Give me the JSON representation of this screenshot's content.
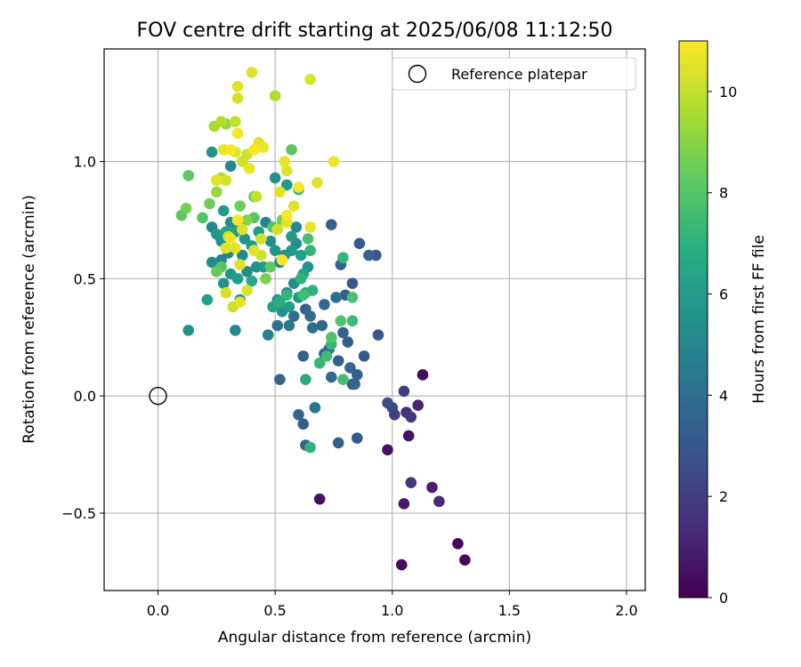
{
  "chart_data": {
    "type": "scatter",
    "title": "FOV centre drift starting at 2025/06/08 11:12:50",
    "xlabel": "Angular distance from reference (arcmin)",
    "ylabel": "Rotation from reference (arcmin)",
    "xlim": [
      -0.23,
      2.08
    ],
    "ylim": [
      -0.83,
      1.48
    ],
    "xticks": [
      0.0,
      0.5,
      1.0,
      1.5,
      2.0
    ],
    "xtick_labels": [
      "0.0",
      "0.5",
      "1.0",
      "1.5",
      "2.0"
    ],
    "yticks": [
      -0.5,
      0.0,
      0.5,
      1.0
    ],
    "ytick_labels": [
      "−0.5",
      "0.0",
      "0.5",
      "1.0"
    ],
    "grid": true,
    "legend": {
      "label": "Reference platepar",
      "placement": "top-right"
    },
    "reference_point": {
      "x": 0.0,
      "y": 0.0
    },
    "colorbar": {
      "label": "Hours from first FF file",
      "colormap": "viridis",
      "range": [
        0,
        11
      ],
      "ticks": [
        0,
        2,
        4,
        6,
        8,
        10
      ],
      "tick_labels": [
        "0",
        "2",
        "4",
        "6",
        "8",
        "10"
      ]
    },
    "points": [
      {
        "x": 1.13,
        "y": 0.09,
        "c": 0.3
      },
      {
        "x": 1.28,
        "y": -0.63,
        "c": 0.2
      },
      {
        "x": 1.31,
        "y": -0.7,
        "c": 0.2
      },
      {
        "x": 1.04,
        "y": -0.72,
        "c": 0.3
      },
      {
        "x": 1.05,
        "y": -0.46,
        "c": 0.8
      },
      {
        "x": 1.2,
        "y": -0.45,
        "c": 1.3
      },
      {
        "x": 1.17,
        "y": -0.39,
        "c": 0.9
      },
      {
        "x": 1.08,
        "y": -0.37,
        "c": 1.8
      },
      {
        "x": 0.98,
        "y": -0.23,
        "c": 0.5
      },
      {
        "x": 1.07,
        "y": -0.17,
        "c": 0.6
      },
      {
        "x": 0.69,
        "y": -0.44,
        "c": 0.5
      },
      {
        "x": 1.11,
        "y": -0.04,
        "c": 1.1
      },
      {
        "x": 1.08,
        "y": -0.09,
        "c": 1.8
      },
      {
        "x": 1.06,
        "y": -0.07,
        "c": 1.5
      },
      {
        "x": 1.01,
        "y": -0.08,
        "c": 2.0
      },
      {
        "x": 1.0,
        "y": -0.05,
        "c": 2.3
      },
      {
        "x": 0.98,
        "y": -0.03,
        "c": 2.6
      },
      {
        "x": 1.05,
        "y": 0.02,
        "c": 2.0
      },
      {
        "x": 0.85,
        "y": -0.18,
        "c": 3.1
      },
      {
        "x": 0.77,
        "y": -0.2,
        "c": 3.3
      },
      {
        "x": 0.63,
        "y": -0.21,
        "c": 3.5
      },
      {
        "x": 0.62,
        "y": -0.12,
        "c": 3.2
      },
      {
        "x": 0.6,
        "y": -0.08,
        "c": 3.6
      },
      {
        "x": 0.67,
        "y": -0.05,
        "c": 4.3
      },
      {
        "x": 0.52,
        "y": 0.07,
        "c": 3.6
      },
      {
        "x": 0.62,
        "y": 0.17,
        "c": 3.3
      },
      {
        "x": 0.71,
        "y": 0.18,
        "c": 3.5
      },
      {
        "x": 0.74,
        "y": 0.08,
        "c": 3.8
      },
      {
        "x": 0.77,
        "y": 0.15,
        "c": 3.2
      },
      {
        "x": 0.82,
        "y": 0.12,
        "c": 3.5
      },
      {
        "x": 0.83,
        "y": 0.05,
        "c": 3.0
      },
      {
        "x": 0.84,
        "y": 0.05,
        "c": 3.6
      },
      {
        "x": 0.85,
        "y": 0.09,
        "c": 3.3
      },
      {
        "x": 0.88,
        "y": 0.17,
        "c": 3.1
      },
      {
        "x": 0.81,
        "y": 0.23,
        "c": 3.2
      },
      {
        "x": 0.79,
        "y": 0.27,
        "c": 3.4
      },
      {
        "x": 0.94,
        "y": 0.26,
        "c": 3.0
      },
      {
        "x": 0.73,
        "y": 0.2,
        "c": 3.5
      },
      {
        "x": 0.7,
        "y": 0.3,
        "c": 3.7
      },
      {
        "x": 0.66,
        "y": 0.29,
        "c": 4.0
      },
      {
        "x": 0.63,
        "y": 0.37,
        "c": 3.5
      },
      {
        "x": 0.65,
        "y": 0.34,
        "c": 3.8
      },
      {
        "x": 0.71,
        "y": 0.39,
        "c": 3.6
      },
      {
        "x": 0.76,
        "y": 0.42,
        "c": 4.0
      },
      {
        "x": 0.8,
        "y": 0.43,
        "c": 3.2
      },
      {
        "x": 0.83,
        "y": 0.48,
        "c": 3.0
      },
      {
        "x": 0.78,
        "y": 0.56,
        "c": 3.4
      },
      {
        "x": 0.86,
        "y": 0.65,
        "c": 3.1
      },
      {
        "x": 0.9,
        "y": 0.6,
        "c": 3.4
      },
      {
        "x": 0.93,
        "y": 0.6,
        "c": 3.0
      },
      {
        "x": 0.74,
        "y": 0.73,
        "c": 3.3
      },
      {
        "x": 0.58,
        "y": 0.34,
        "c": 4.1
      },
      {
        "x": 0.56,
        "y": 0.3,
        "c": 4.5
      },
      {
        "x": 0.51,
        "y": 0.3,
        "c": 4.2
      },
      {
        "x": 0.47,
        "y": 0.26,
        "c": 4.9
      },
      {
        "x": 0.33,
        "y": 0.28,
        "c": 5.1
      },
      {
        "x": 0.13,
        "y": 0.28,
        "c": 5.6
      },
      {
        "x": 0.21,
        "y": 0.41,
        "c": 6.2
      },
      {
        "x": 0.35,
        "y": 0.41,
        "c": 5.8
      },
      {
        "x": 0.28,
        "y": 0.48,
        "c": 5.5
      },
      {
        "x": 0.31,
        "y": 0.52,
        "c": 5.9
      },
      {
        "x": 0.34,
        "y": 0.5,
        "c": 6.1
      },
      {
        "x": 0.38,
        "y": 0.53,
        "c": 5.3
      },
      {
        "x": 0.42,
        "y": 0.55,
        "c": 5.6
      },
      {
        "x": 0.45,
        "y": 0.55,
        "c": 6.1
      },
      {
        "x": 0.4,
        "y": 0.49,
        "c": 6.5
      },
      {
        "x": 0.36,
        "y": 0.6,
        "c": 5.2
      },
      {
        "x": 0.3,
        "y": 0.61,
        "c": 4.8
      },
      {
        "x": 0.27,
        "y": 0.58,
        "c": 5.0
      },
      {
        "x": 0.23,
        "y": 0.57,
        "c": 5.4
      },
      {
        "x": 0.27,
        "y": 0.66,
        "c": 5.7
      },
      {
        "x": 0.29,
        "y": 0.7,
        "c": 6.3
      },
      {
        "x": 0.31,
        "y": 0.74,
        "c": 5.5
      },
      {
        "x": 0.28,
        "y": 0.79,
        "c": 5.9
      },
      {
        "x": 0.23,
        "y": 0.72,
        "c": 5.2
      },
      {
        "x": 0.25,
        "y": 0.69,
        "c": 5.8
      },
      {
        "x": 0.33,
        "y": 0.7,
        "c": 6.1
      },
      {
        "x": 0.35,
        "y": 0.73,
        "c": 6.4
      },
      {
        "x": 0.37,
        "y": 0.67,
        "c": 5.6
      },
      {
        "x": 0.4,
        "y": 0.64,
        "c": 5.9
      },
      {
        "x": 0.43,
        "y": 0.7,
        "c": 6.2
      },
      {
        "x": 0.46,
        "y": 0.74,
        "c": 4.9
      },
      {
        "x": 0.48,
        "y": 0.66,
        "c": 5.4
      },
      {
        "x": 0.5,
        "y": 0.62,
        "c": 5.8
      },
      {
        "x": 0.52,
        "y": 0.57,
        "c": 5.0
      },
      {
        "x": 0.54,
        "y": 0.6,
        "c": 5.6
      },
      {
        "x": 0.57,
        "y": 0.62,
        "c": 6.0
      },
      {
        "x": 0.59,
        "y": 0.65,
        "c": 5.3
      },
      {
        "x": 0.61,
        "y": 0.6,
        "c": 6.2
      },
      {
        "x": 0.64,
        "y": 0.55,
        "c": 5.7
      },
      {
        "x": 0.62,
        "y": 0.52,
        "c": 6.4
      },
      {
        "x": 0.58,
        "y": 0.48,
        "c": 5.4
      },
      {
        "x": 0.55,
        "y": 0.44,
        "c": 5.0
      },
      {
        "x": 0.51,
        "y": 0.41,
        "c": 5.9
      },
      {
        "x": 0.49,
        "y": 0.38,
        "c": 6.3
      },
      {
        "x": 0.53,
        "y": 0.36,
        "c": 5.6
      },
      {
        "x": 0.56,
        "y": 0.38,
        "c": 6.1
      },
      {
        "x": 0.6,
        "y": 0.42,
        "c": 5.8
      },
      {
        "x": 0.63,
        "y": 0.44,
        "c": 6.6
      },
      {
        "x": 0.66,
        "y": 0.45,
        "c": 7.0
      },
      {
        "x": 0.5,
        "y": 0.93,
        "c": 5.6
      },
      {
        "x": 0.55,
        "y": 0.9,
        "c": 5.9
      },
      {
        "x": 0.31,
        "y": 0.98,
        "c": 5.1
      },
      {
        "x": 0.23,
        "y": 1.04,
        "c": 5.6
      },
      {
        "x": 0.59,
        "y": 0.72,
        "c": 5.3
      },
      {
        "x": 0.57,
        "y": 0.68,
        "c": 6.0
      },
      {
        "x": 0.52,
        "y": 0.4,
        "c": 6.8
      },
      {
        "x": 0.55,
        "y": 0.43,
        "c": 7.2
      },
      {
        "x": 0.63,
        "y": 0.07,
        "c": 6.7
      },
      {
        "x": 0.65,
        "y": -0.22,
        "c": 7.1
      },
      {
        "x": 0.69,
        "y": 0.14,
        "c": 7.3
      },
      {
        "x": 0.72,
        "y": 0.17,
        "c": 7.6
      },
      {
        "x": 0.74,
        "y": 0.22,
        "c": 7.4
      },
      {
        "x": 0.74,
        "y": 0.25,
        "c": 7.9
      },
      {
        "x": 0.79,
        "y": 0.07,
        "c": 7.7
      },
      {
        "x": 0.78,
        "y": 0.32,
        "c": 8.0
      },
      {
        "x": 0.83,
        "y": 0.32,
        "c": 7.5
      },
      {
        "x": 0.83,
        "y": 0.42,
        "c": 7.8
      },
      {
        "x": 0.79,
        "y": 0.59,
        "c": 7.3
      },
      {
        "x": 0.65,
        "y": 0.62,
        "c": 7.2
      },
      {
        "x": 0.64,
        "y": 0.67,
        "c": 7.8
      },
      {
        "x": 0.6,
        "y": 0.88,
        "c": 7.4
      },
      {
        "x": 0.61,
        "y": 0.5,
        "c": 7.1
      },
      {
        "x": 0.62,
        "y": 0.43,
        "c": 7.6
      },
      {
        "x": 0.27,
        "y": 0.55,
        "c": 8.1
      },
      {
        "x": 0.25,
        "y": 0.53,
        "c": 8.4
      },
      {
        "x": 0.19,
        "y": 0.76,
        "c": 8.0
      },
      {
        "x": 0.22,
        "y": 0.82,
        "c": 8.6
      },
      {
        "x": 0.13,
        "y": 0.94,
        "c": 8.2
      },
      {
        "x": 0.12,
        "y": 0.8,
        "c": 8.7
      },
      {
        "x": 0.1,
        "y": 0.77,
        "c": 8.3
      },
      {
        "x": 0.35,
        "y": 0.81,
        "c": 8.5
      },
      {
        "x": 0.38,
        "y": 0.75,
        "c": 8.9
      },
      {
        "x": 0.41,
        "y": 0.76,
        "c": 8.1
      },
      {
        "x": 0.46,
        "y": 0.5,
        "c": 8.8
      },
      {
        "x": 0.48,
        "y": 0.55,
        "c": 8.3
      },
      {
        "x": 0.49,
        "y": 0.72,
        "c": 8.0
      },
      {
        "x": 0.53,
        "y": 0.75,
        "c": 8.7
      },
      {
        "x": 0.41,
        "y": 0.85,
        "c": 8.4
      },
      {
        "x": 0.57,
        "y": 1.05,
        "c": 8.2
      },
      {
        "x": 0.25,
        "y": 0.87,
        "c": 9.3
      },
      {
        "x": 0.27,
        "y": 0.93,
        "c": 9.6
      },
      {
        "x": 0.24,
        "y": 1.15,
        "c": 9.5
      },
      {
        "x": 0.27,
        "y": 1.17,
        "c": 9.8
      },
      {
        "x": 0.29,
        "y": 1.16,
        "c": 9.1
      },
      {
        "x": 0.33,
        "y": 1.17,
        "c": 10.0
      },
      {
        "x": 0.34,
        "y": 1.27,
        "c": 10.3
      },
      {
        "x": 0.34,
        "y": 1.32,
        "c": 10.5
      },
      {
        "x": 0.4,
        "y": 1.38,
        "c": 10.4
      },
      {
        "x": 0.5,
        "y": 1.28,
        "c": 9.7
      },
      {
        "x": 0.65,
        "y": 1.35,
        "c": 10.4
      },
      {
        "x": 0.34,
        "y": 1.12,
        "c": 10.8
      },
      {
        "x": 0.38,
        "y": 1.03,
        "c": 10.2
      },
      {
        "x": 0.39,
        "y": 0.97,
        "c": 10.6
      },
      {
        "x": 0.41,
        "y": 1.05,
        "c": 10.9
      },
      {
        "x": 0.43,
        "y": 1.08,
        "c": 10.5
      },
      {
        "x": 0.45,
        "y": 1.06,
        "c": 10.7
      },
      {
        "x": 0.31,
        "y": 1.05,
        "c": 10.9
      },
      {
        "x": 0.33,
        "y": 1.04,
        "c": 10.4
      },
      {
        "x": 0.36,
        "y": 1.0,
        "c": 10.2
      },
      {
        "x": 0.28,
        "y": 1.05,
        "c": 10.6
      },
      {
        "x": 0.29,
        "y": 0.92,
        "c": 10.3
      },
      {
        "x": 0.25,
        "y": 0.92,
        "c": 10.5
      },
      {
        "x": 0.42,
        "y": 0.85,
        "c": 10.1
      },
      {
        "x": 0.54,
        "y": 1.0,
        "c": 10.6
      },
      {
        "x": 0.55,
        "y": 0.96,
        "c": 10.4
      },
      {
        "x": 0.52,
        "y": 0.87,
        "c": 10.5
      },
      {
        "x": 0.6,
        "y": 0.89,
        "c": 10.8
      },
      {
        "x": 0.68,
        "y": 0.91,
        "c": 10.5
      },
      {
        "x": 0.75,
        "y": 1.0,
        "c": 10.7
      },
      {
        "x": 0.58,
        "y": 0.81,
        "c": 10.4
      },
      {
        "x": 0.55,
        "y": 0.77,
        "c": 10.9
      },
      {
        "x": 0.55,
        "y": 0.74,
        "c": 10.5
      },
      {
        "x": 0.51,
        "y": 0.71,
        "c": 10.2
      },
      {
        "x": 0.65,
        "y": 0.72,
        "c": 10.6
      },
      {
        "x": 0.44,
        "y": 0.67,
        "c": 10.3
      },
      {
        "x": 0.41,
        "y": 0.62,
        "c": 10.5
      },
      {
        "x": 0.31,
        "y": 0.67,
        "c": 10.8
      },
      {
        "x": 0.29,
        "y": 0.63,
        "c": 10.4
      },
      {
        "x": 0.33,
        "y": 0.63,
        "c": 10.6
      },
      {
        "x": 0.44,
        "y": 0.6,
        "c": 10.2
      },
      {
        "x": 0.35,
        "y": 0.56,
        "c": 10.5
      },
      {
        "x": 0.53,
        "y": 0.58,
        "c": 10.9
      },
      {
        "x": 0.29,
        "y": 0.44,
        "c": 10.3
      },
      {
        "x": 0.35,
        "y": 0.4,
        "c": 10.6
      },
      {
        "x": 0.38,
        "y": 0.45,
        "c": 10.4
      },
      {
        "x": 0.32,
        "y": 0.38,
        "c": 10.1
      },
      {
        "x": 0.34,
        "y": 0.75,
        "c": 10.9
      },
      {
        "x": 0.36,
        "y": 0.71,
        "c": 10.5
      },
      {
        "x": 0.3,
        "y": 0.68,
        "c": 10.2
      }
    ]
  }
}
